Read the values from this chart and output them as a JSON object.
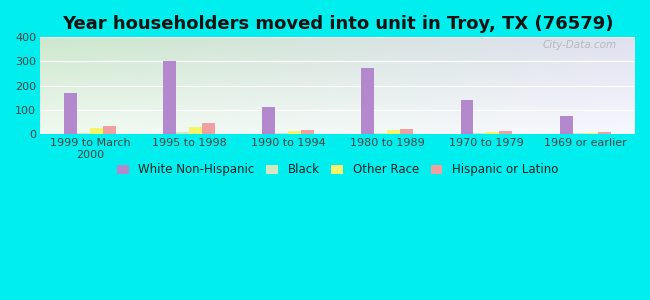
{
  "title": "Year householders moved into unit in Troy, TX (76579)",
  "categories": [
    "1999 to March\n2000",
    "1995 to 1998",
    "1990 to 1994",
    "1980 to 1989",
    "1970 to 1979",
    "1969 or earlier"
  ],
  "series": {
    "White Non-Hispanic": [
      170,
      302,
      113,
      272,
      141,
      75
    ],
    "Black": [
      5,
      8,
      3,
      5,
      3,
      2
    ],
    "Other Race": [
      25,
      27,
      12,
      14,
      8,
      2
    ],
    "Hispanic or Latino": [
      33,
      46,
      15,
      22,
      10,
      8
    ]
  },
  "colors": {
    "White Non-Hispanic": "#b388cc",
    "Black": "#d4e8c2",
    "Other Race": "#f5f56a",
    "Hispanic or Latino": "#f0a0a0"
  },
  "bar_width": 0.13,
  "ylim": [
    0,
    400
  ],
  "yticks": [
    0,
    100,
    200,
    300,
    400
  ],
  "background_color": "#00eeee",
  "plot_bg_top_color": "#cce8cc",
  "plot_bg_bottom_color": "#f0faf0",
  "plot_bg_right_color": "#e8e8f4",
  "grid_color": "#ffffff",
  "title_fontsize": 13,
  "tick_fontsize": 8,
  "legend_fontsize": 8.5
}
